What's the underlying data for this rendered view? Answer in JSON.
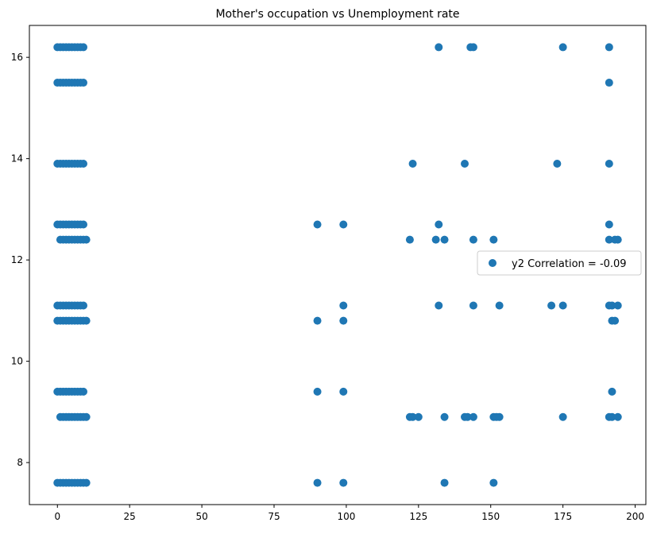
{
  "chart_data": {
    "type": "scatter",
    "title": "Mother's occupation vs Unemployment rate",
    "xlabel": "",
    "ylabel": "",
    "xlim": [
      -9.7,
      203.7
    ],
    "ylim": [
      7.17,
      16.63
    ],
    "xticks": [
      0,
      25,
      50,
      75,
      100,
      125,
      150,
      175,
      200
    ],
    "yticks": [
      8,
      10,
      12,
      14,
      16
    ],
    "grid": false,
    "legend": {
      "placement": "center-right",
      "entries": [
        "y2 Correlation = -0.09"
      ]
    },
    "marker_color": "#1f77b4",
    "series": [
      {
        "label": "y2 Correlation = -0.09",
        "points": [
          [
            0,
            16.2
          ],
          [
            1,
            16.2
          ],
          [
            2,
            16.2
          ],
          [
            3,
            16.2
          ],
          [
            4,
            16.2
          ],
          [
            5,
            16.2
          ],
          [
            6,
            16.2
          ],
          [
            7,
            16.2
          ],
          [
            8,
            16.2
          ],
          [
            9,
            16.2
          ],
          [
            132,
            16.2
          ],
          [
            143,
            16.2
          ],
          [
            144,
            16.2
          ],
          [
            175,
            16.2
          ],
          [
            191,
            16.2
          ],
          [
            0,
            15.5
          ],
          [
            1,
            15.5
          ],
          [
            2,
            15.5
          ],
          [
            3,
            15.5
          ],
          [
            4,
            15.5
          ],
          [
            5,
            15.5
          ],
          [
            6,
            15.5
          ],
          [
            7,
            15.5
          ],
          [
            8,
            15.5
          ],
          [
            9,
            15.5
          ],
          [
            191,
            15.5
          ],
          [
            0,
            13.9
          ],
          [
            1,
            13.9
          ],
          [
            2,
            13.9
          ],
          [
            3,
            13.9
          ],
          [
            4,
            13.9
          ],
          [
            5,
            13.9
          ],
          [
            6,
            13.9
          ],
          [
            7,
            13.9
          ],
          [
            8,
            13.9
          ],
          [
            9,
            13.9
          ],
          [
            123,
            13.9
          ],
          [
            141,
            13.9
          ],
          [
            173,
            13.9
          ],
          [
            191,
            13.9
          ],
          [
            0,
            12.7
          ],
          [
            1,
            12.7
          ],
          [
            2,
            12.7
          ],
          [
            3,
            12.7
          ],
          [
            4,
            12.7
          ],
          [
            5,
            12.7
          ],
          [
            6,
            12.7
          ],
          [
            7,
            12.7
          ],
          [
            8,
            12.7
          ],
          [
            9,
            12.7
          ],
          [
            90,
            12.7
          ],
          [
            99,
            12.7
          ],
          [
            132,
            12.7
          ],
          [
            191,
            12.7
          ],
          [
            1,
            12.4
          ],
          [
            2,
            12.4
          ],
          [
            3,
            12.4
          ],
          [
            4,
            12.4
          ],
          [
            5,
            12.4
          ],
          [
            6,
            12.4
          ],
          [
            7,
            12.4
          ],
          [
            8,
            12.4
          ],
          [
            9,
            12.4
          ],
          [
            10,
            12.4
          ],
          [
            122,
            12.4
          ],
          [
            131,
            12.4
          ],
          [
            134,
            12.4
          ],
          [
            144,
            12.4
          ],
          [
            151,
            12.4
          ],
          [
            191,
            12.4
          ],
          [
            193,
            12.4
          ],
          [
            194,
            12.4
          ],
          [
            0,
            11.1
          ],
          [
            1,
            11.1
          ],
          [
            2,
            11.1
          ],
          [
            3,
            11.1
          ],
          [
            4,
            11.1
          ],
          [
            5,
            11.1
          ],
          [
            6,
            11.1
          ],
          [
            7,
            11.1
          ],
          [
            8,
            11.1
          ],
          [
            9,
            11.1
          ],
          [
            99,
            11.1
          ],
          [
            132,
            11.1
          ],
          [
            144,
            11.1
          ],
          [
            153,
            11.1
          ],
          [
            171,
            11.1
          ],
          [
            175,
            11.1
          ],
          [
            191,
            11.1
          ],
          [
            192,
            11.1
          ],
          [
            194,
            11.1
          ],
          [
            0,
            10.8
          ],
          [
            1,
            10.8
          ],
          [
            2,
            10.8
          ],
          [
            3,
            10.8
          ],
          [
            4,
            10.8
          ],
          [
            5,
            10.8
          ],
          [
            6,
            10.8
          ],
          [
            7,
            10.8
          ],
          [
            8,
            10.8
          ],
          [
            9,
            10.8
          ],
          [
            10,
            10.8
          ],
          [
            90,
            10.8
          ],
          [
            99,
            10.8
          ],
          [
            192,
            10.8
          ],
          [
            193,
            10.8
          ],
          [
            0,
            9.4
          ],
          [
            1,
            9.4
          ],
          [
            2,
            9.4
          ],
          [
            3,
            9.4
          ],
          [
            4,
            9.4
          ],
          [
            5,
            9.4
          ],
          [
            6,
            9.4
          ],
          [
            7,
            9.4
          ],
          [
            8,
            9.4
          ],
          [
            9,
            9.4
          ],
          [
            90,
            9.4
          ],
          [
            99,
            9.4
          ],
          [
            192,
            9.4
          ],
          [
            1,
            8.9
          ],
          [
            2,
            8.9
          ],
          [
            3,
            8.9
          ],
          [
            4,
            8.9
          ],
          [
            5,
            8.9
          ],
          [
            6,
            8.9
          ],
          [
            7,
            8.9
          ],
          [
            8,
            8.9
          ],
          [
            9,
            8.9
          ],
          [
            10,
            8.9
          ],
          [
            122,
            8.9
          ],
          [
            123,
            8.9
          ],
          [
            125,
            8.9
          ],
          [
            134,
            8.9
          ],
          [
            141,
            8.9
          ],
          [
            142,
            8.9
          ],
          [
            144,
            8.9
          ],
          [
            151,
            8.9
          ],
          [
            152,
            8.9
          ],
          [
            153,
            8.9
          ],
          [
            175,
            8.9
          ],
          [
            191,
            8.9
          ],
          [
            192,
            8.9
          ],
          [
            194,
            8.9
          ],
          [
            0,
            7.6
          ],
          [
            1,
            7.6
          ],
          [
            2,
            7.6
          ],
          [
            3,
            7.6
          ],
          [
            4,
            7.6
          ],
          [
            5,
            7.6
          ],
          [
            6,
            7.6
          ],
          [
            7,
            7.6
          ],
          [
            8,
            7.6
          ],
          [
            9,
            7.6
          ],
          [
            10,
            7.6
          ],
          [
            90,
            7.6
          ],
          [
            99,
            7.6
          ],
          [
            134,
            7.6
          ],
          [
            151,
            7.6
          ]
        ]
      }
    ]
  }
}
